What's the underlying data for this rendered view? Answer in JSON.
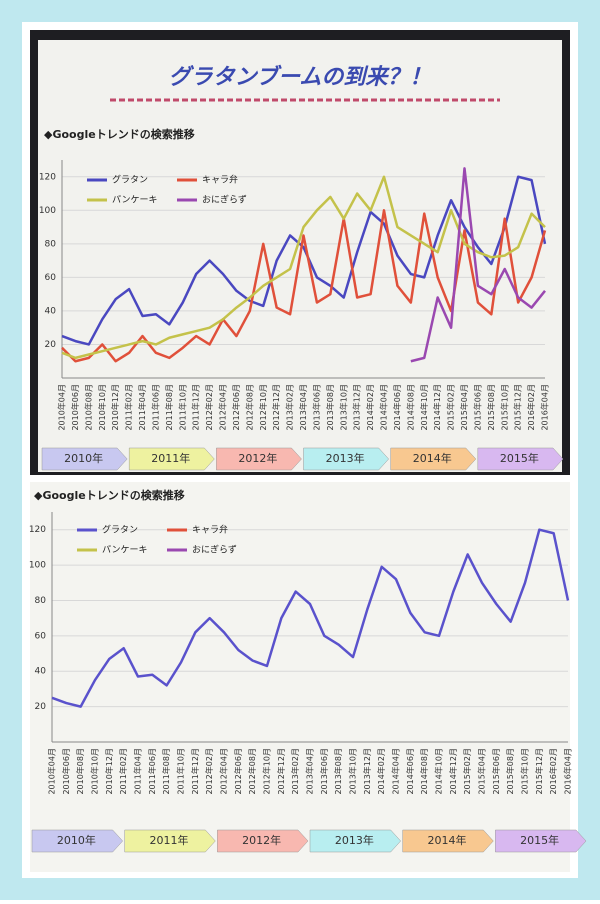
{
  "chart_data": [
    {
      "type": "line",
      "title": "グラタンブームの到来？！",
      "subtitle": "◆Googleトレンドの検索推移",
      "categories": [
        "2010年04月",
        "2010年06月",
        "2010年08月",
        "2010年10月",
        "2010年12月",
        "2011年02月",
        "2011年04月",
        "2011年06月",
        "2011年08月",
        "2011年10月",
        "2011年12月",
        "2012年02月",
        "2012年04月",
        "2012年06月",
        "2012年08月",
        "2012年10月",
        "2012年12月",
        "2013年02月",
        "2013年04月",
        "2013年06月",
        "2013年08月",
        "2013年10月",
        "2013年12月",
        "2014年02月",
        "2014年04月",
        "2014年06月",
        "2014年08月",
        "2014年10月",
        "2014年12月",
        "2015年02月",
        "2015年04月",
        "2015年06月",
        "2015年08月",
        "2015年10月",
        "2015年12月",
        "2016年02月",
        "2016年04月"
      ],
      "series": [
        {
          "name": "グラタン",
          "color": "#4a48c0",
          "values": [
            25,
            22,
            20,
            35,
            47,
            53,
            37,
            38,
            32,
            45,
            62,
            70,
            62,
            52,
            46,
            43,
            70,
            85,
            78,
            60,
            55,
            48,
            75,
            99,
            92,
            73,
            62,
            60,
            85,
            106,
            90,
            78,
            68,
            90,
            120,
            118,
            80
          ]
        },
        {
          "name": "キャラ弁",
          "color": "#e0503a",
          "values": [
            18,
            10,
            12,
            20,
            10,
            15,
            25,
            15,
            12,
            18,
            25,
            20,
            35,
            25,
            40,
            80,
            42,
            38,
            85,
            45,
            50,
            95,
            48,
            50,
            100,
            55,
            45,
            98,
            60,
            40,
            88,
            45,
            38,
            95,
            45,
            60,
            88
          ]
        },
        {
          "name": "パンケーキ",
          "color": "#c4c24a",
          "values": [
            15,
            12,
            14,
            16,
            18,
            20,
            22,
            20,
            24,
            26,
            28,
            30,
            35,
            42,
            48,
            55,
            60,
            65,
            90,
            100,
            108,
            95,
            110,
            100,
            120,
            90,
            85,
            80,
            75,
            100,
            80,
            75,
            72,
            73,
            78,
            98,
            90
          ]
        },
        {
          "name": "おにぎらず",
          "color": "#9a48b0",
          "values": [
            null,
            null,
            null,
            null,
            null,
            null,
            null,
            null,
            null,
            null,
            null,
            null,
            null,
            null,
            null,
            null,
            null,
            null,
            null,
            null,
            null,
            null,
            null,
            null,
            null,
            null,
            10,
            12,
            48,
            30,
            125,
            55,
            50,
            65,
            48,
            42,
            52
          ]
        }
      ],
      "ylim": [
        0,
        130
      ],
      "yticks": [
        20,
        40,
        60,
        80,
        100,
        120
      ],
      "grid": true,
      "year_labels": [
        "2010年",
        "2011年",
        "2012年",
        "2013年",
        "2014年",
        "2015年"
      ]
    },
    {
      "type": "line",
      "subtitle": "◆Googleトレンドの検索推移",
      "categories": [
        "2010年04月",
        "2010年06月",
        "2010年08月",
        "2010年10月",
        "2010年12月",
        "2011年02月",
        "2011年04月",
        "2011年06月",
        "2011年08月",
        "2011年10月",
        "2011年12月",
        "2012年02月",
        "2012年04月",
        "2012年06月",
        "2012年08月",
        "2012年10月",
        "2012年12月",
        "2013年02月",
        "2013年04月",
        "2013年06月",
        "2013年08月",
        "2013年10月",
        "2013年12月",
        "2014年02月",
        "2014年04月",
        "2014年06月",
        "2014年08月",
        "2014年10月",
        "2014年12月",
        "2015年02月",
        "2015年04月",
        "2015年06月",
        "2015年08月",
        "2015年10月",
        "2015年12月",
        "2016年02月",
        "2016年04月"
      ],
      "series": [
        {
          "name": "グラタン",
          "color": "#5a52cc",
          "values": [
            25,
            22,
            20,
            35,
            47,
            53,
            37,
            38,
            32,
            45,
            62,
            70,
            62,
            52,
            46,
            43,
            70,
            85,
            78,
            60,
            55,
            48,
            75,
            99,
            92,
            73,
            62,
            60,
            85,
            106,
            90,
            78,
            68,
            90,
            120,
            118,
            80
          ]
        }
      ],
      "legend_entries": [
        {
          "name": "グラタン",
          "color": "#5a52cc"
        },
        {
          "name": "キャラ弁",
          "color": "#e0503a"
        },
        {
          "name": "パンケーキ",
          "color": "#c4c24a"
        },
        {
          "name": "おにぎらず",
          "color": "#9a48b0"
        }
      ],
      "ylim": [
        0,
        130
      ],
      "yticks": [
        20,
        40,
        60,
        80,
        100,
        120
      ],
      "grid": true,
      "year_labels": [
        "2010年",
        "2011年",
        "2012年",
        "2013年",
        "2014年",
        "2015年"
      ]
    }
  ]
}
